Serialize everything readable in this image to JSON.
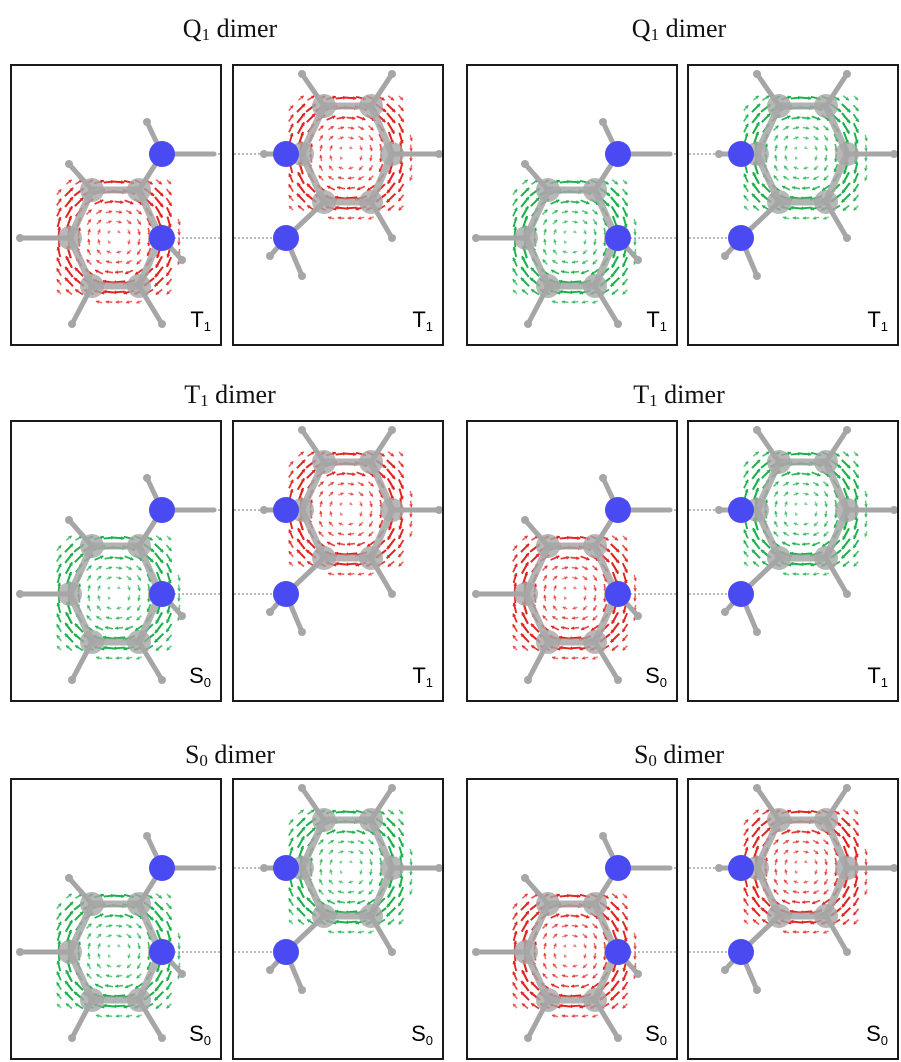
{
  "colors": {
    "paratropic": "#e0241f",
    "diatropic": "#1ab04a",
    "carbon": "#a6a6a6",
    "nitrogen": "#4a4af2",
    "bond": "#a6a6a6"
  },
  "rows": [
    {
      "groups": [
        {
          "title": {
            "letter": "Q",
            "sub": "1",
            "rest": " dimer"
          },
          "panels": [
            {
              "current": "paratropic",
              "label": {
                "letter": "T",
                "sub": "1"
              }
            },
            {
              "current": "paratropic",
              "label": {
                "letter": "T",
                "sub": "1"
              }
            }
          ]
        },
        {
          "title": {
            "letter": "Q",
            "sub": "1",
            "rest": " dimer"
          },
          "panels": [
            {
              "current": "diatropic",
              "label": {
                "letter": "T",
                "sub": "1"
              }
            },
            {
              "current": "diatropic",
              "label": {
                "letter": "T",
                "sub": "1"
              }
            }
          ]
        }
      ]
    },
    {
      "groups": [
        {
          "title": {
            "letter": "T",
            "sub": "1",
            "rest": " dimer"
          },
          "panels": [
            {
              "current": "diatropic",
              "label": {
                "letter": "S",
                "sub": "0"
              }
            },
            {
              "current": "paratropic",
              "label": {
                "letter": "T",
                "sub": "1"
              }
            }
          ]
        },
        {
          "title": {
            "letter": "T",
            "sub": "1",
            "rest": " dimer"
          },
          "panels": [
            {
              "current": "paratropic",
              "label": {
                "letter": "S",
                "sub": "0"
              }
            },
            {
              "current": "diatropic",
              "label": {
                "letter": "T",
                "sub": "1"
              }
            }
          ]
        }
      ]
    },
    {
      "groups": [
        {
          "title": {
            "letter": "S",
            "sub": "0",
            "rest": " dimer"
          },
          "panels": [
            {
              "current": "diatropic",
              "label": {
                "letter": "S",
                "sub": "0"
              }
            },
            {
              "current": "diatropic",
              "label": {
                "letter": "S",
                "sub": "0"
              }
            }
          ]
        },
        {
          "title": {
            "letter": "S",
            "sub": "0",
            "rest": " dimer"
          },
          "panels": [
            {
              "current": "paratropic",
              "label": {
                "letter": "S",
                "sub": "0"
              }
            },
            {
              "current": "paratropic",
              "label": {
                "letter": "S",
                "sub": "0"
              }
            }
          ]
        }
      ]
    }
  ]
}
